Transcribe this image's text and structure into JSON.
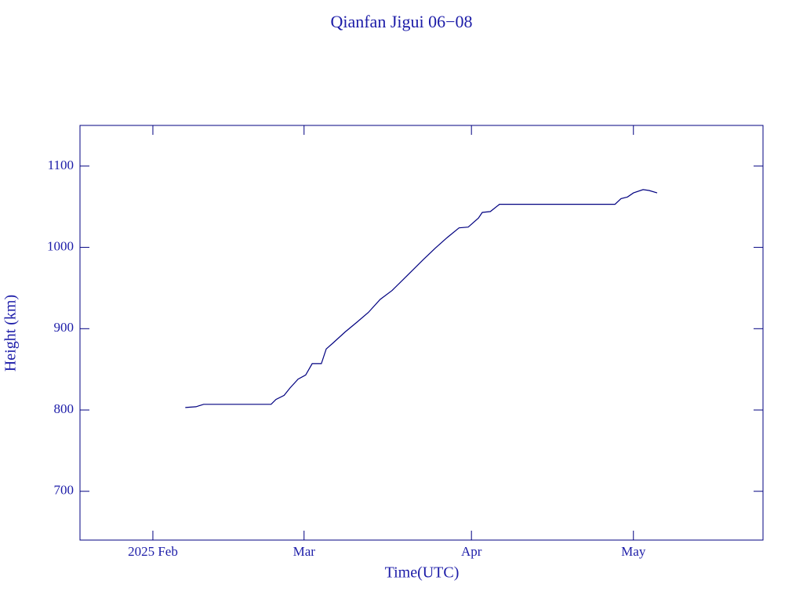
{
  "chart_data": {
    "type": "line",
    "title": "Qianfan Jigui 06−08",
    "x_label": "Time(UTC)",
    "y_label": "Height (km)",
    "x": [
      38,
      40,
      41.4,
      53.9,
      54.8,
      56.3,
      57.4,
      58.9,
      60.3,
      61.5,
      63.2,
      64.1,
      65.3,
      67.6,
      69.8,
      71.9,
      74.1,
      76.3,
      79.2,
      82.1,
      84.3,
      86.5,
      88.7,
      90.4,
      92.3,
      93.0,
      94.5,
      96.2,
      117.6,
      118.7,
      119.9,
      121.0,
      122.8,
      123.9,
      125.4
    ],
    "series": [
      {
        "color": "#000080",
        "values": [
          803,
          804,
          807,
          807,
          813,
          818,
          827,
          838,
          843,
          857,
          857,
          875,
          882,
          896,
          908,
          920,
          936,
          947,
          966,
          985,
          999,
          1012,
          1024,
          1025,
          1036,
          1043,
          1044,
          1053,
          1053,
          1060,
          1062,
          1067,
          1071,
          1070,
          1067
        ]
      }
    ],
    "xlim": [
      18.5,
      145
    ],
    "xticks": [
      {
        "value": 32,
        "label": "2025 Feb"
      },
      {
        "value": 60,
        "label": "Mar"
      },
      {
        "value": 91,
        "label": "Apr"
      },
      {
        "value": 121,
        "label": "May"
      }
    ],
    "ylim": [
      640,
      1150
    ],
    "yticks": [
      700,
      800,
      900,
      1000,
      1100
    ],
    "grid": false
  }
}
